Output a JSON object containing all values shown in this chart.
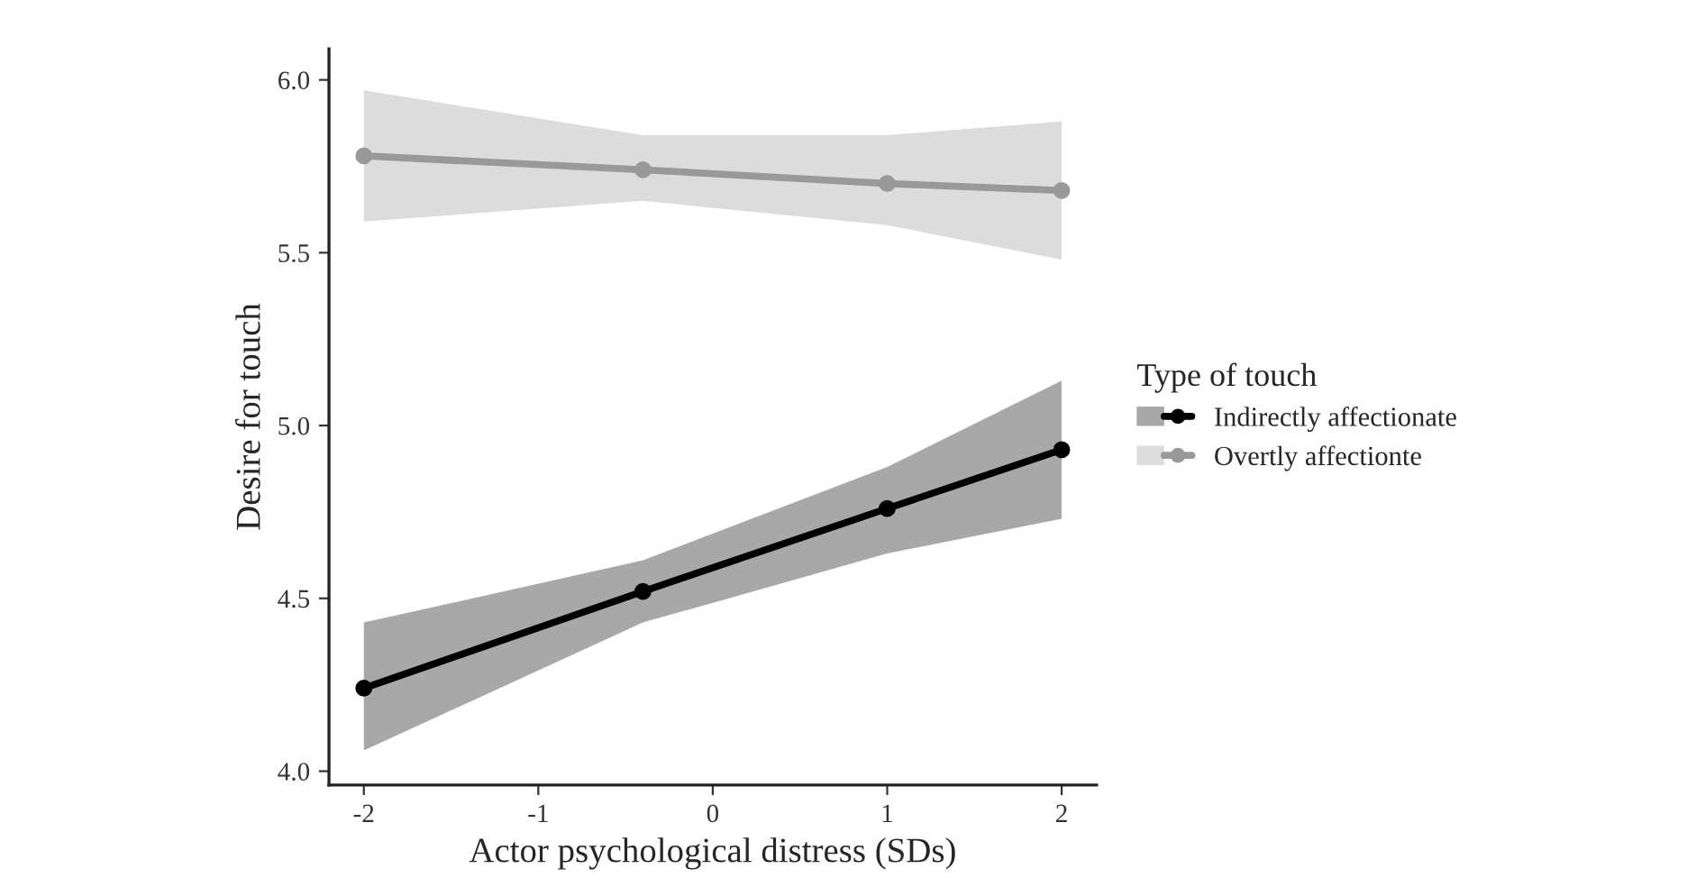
{
  "chart_data": {
    "type": "line",
    "xlabel": "Actor psychological distress (SDs)",
    "ylabel": "Desire for touch",
    "legend_title": "Type of touch",
    "legend": "right",
    "marker": "circle",
    "line_style": "solid",
    "grid": false,
    "x": [
      -2,
      -0.4,
      1,
      2
    ],
    "xlim": [
      -2.2,
      2.2
    ],
    "xticks": [
      -2,
      -1,
      0,
      1,
      2
    ],
    "ylim": [
      3.96,
      6.09
    ],
    "yticks": [
      {
        "value": 4,
        "label": "4.0"
      },
      {
        "value": 4.5,
        "label": "4.5"
      },
      {
        "value": 5,
        "label": "5.0"
      },
      {
        "value": 5.5,
        "label": "5.5"
      },
      {
        "value": 6,
        "label": "6.0"
      }
    ],
    "series": [
      {
        "name": "Indirectly affectionate",
        "color": "#000000",
        "values": [
          4.24,
          4.52,
          4.76,
          4.93
        ],
        "lower": [
          4.06,
          4.43,
          4.63,
          4.73
        ],
        "upper": [
          4.43,
          4.61,
          4.88,
          5.13
        ]
      },
      {
        "name": "Overtly affectionte",
        "color": "#999999",
        "values": [
          5.78,
          5.74,
          5.7,
          5.68
        ],
        "lower": [
          5.59,
          5.65,
          5.58,
          5.48
        ],
        "upper": [
          5.97,
          5.84,
          5.84,
          5.88
        ]
      }
    ]
  }
}
